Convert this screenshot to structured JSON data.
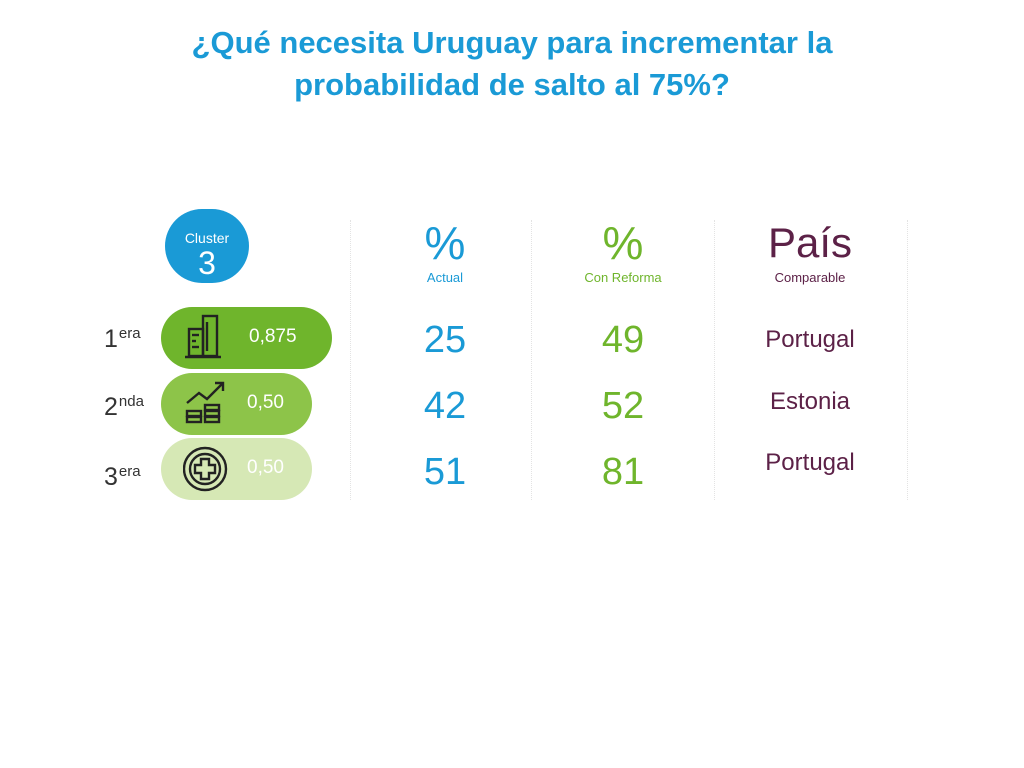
{
  "title": {
    "line1": "¿Qué necesita Uruguay para incrementar la",
    "line2": "probabilidad de salto al 75%?"
  },
  "cluster": {
    "label": "Cluster",
    "number": "3"
  },
  "columns": {
    "actual": {
      "symbol": "%",
      "label": "Actual"
    },
    "reforma": {
      "symbol": "%",
      "label": "Con Reforma"
    },
    "pais": {
      "symbol": "País",
      "label": "Comparable"
    }
  },
  "rows": [
    {
      "rank": "1",
      "suffix": "era",
      "icon": "buildings-icon",
      "value": "0,875",
      "actual": "25",
      "reforma": "49",
      "country": "Portugal"
    },
    {
      "rank": "2",
      "suffix": "nda",
      "icon": "growth-coins-icon",
      "value": "0,50",
      "actual": "42",
      "reforma": "52",
      "country": "Estonia"
    },
    {
      "rank": "3",
      "suffix": "era",
      "icon": "health-cross-icon",
      "value": "0,50",
      "actual": "51",
      "reforma": "81",
      "country": "Portugal"
    }
  ],
  "colors": {
    "blue": "#1a9ad6",
    "green_dark": "#6fb52c",
    "green_mid": "#8dc449",
    "green_light": "#d6e8b5",
    "purple": "#5c2147"
  }
}
